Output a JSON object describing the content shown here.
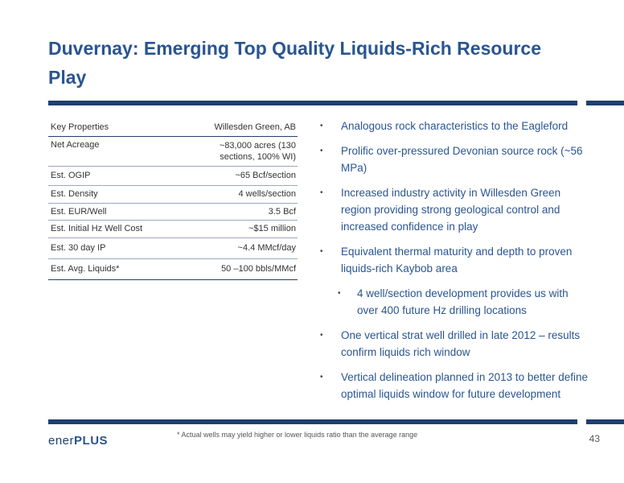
{
  "title": "Duvernay: Emerging Top Quality Liquids-Rich Resource Play",
  "table": {
    "header": {
      "label": "Key Properties",
      "value": "Willesden Green, AB"
    },
    "rows": [
      {
        "label": "Net Acreage",
        "value_line1": "~83,000 acres (130",
        "value_line2": "sections, 100% WI)"
      },
      {
        "label": "Est. OGIP",
        "value": "~65 Bcf/section"
      },
      {
        "label": "Est. Density",
        "value": "4 wells/section"
      },
      {
        "label": "Est. EUR/Well",
        "value": "3.5 Bcf"
      },
      {
        "label": "Est. Initial Hz Well Cost",
        "value": "~$15 million"
      },
      {
        "label": "Est. 30 day IP",
        "value": "~4.4 MMcf/day"
      },
      {
        "label": "Est. Avg. Liquids*",
        "value": "50 –100 bbls/MMcf"
      }
    ]
  },
  "bullets": [
    {
      "line1": "Analogous rock characteristics to the Eagleford"
    },
    {
      "line1": "Prolific over-pressured Devonian source rock (~56",
      "line2": "MPa)"
    },
    {
      "line1": "Increased industry activity in Willesden Green",
      "line2": "region providing strong geological control and",
      "line3": "increased confidence in play"
    },
    {
      "line1": "Equivalent thermal maturity and depth to proven",
      "line2": "liquids-rich Kaybob area"
    },
    {
      "line1": "4 well/section development provides us with",
      "line2": "over 400 future Hz drilling locations",
      "sub": true
    },
    {
      "line1": "One vertical strat well drilled in late 2012 – results",
      "line2": "confirm liquids rich window"
    },
    {
      "line1": "Vertical delineation planned in 2013 to better define",
      "line2": "optimal liquids window for future development"
    }
  ],
  "footer": {
    "logo_part1": "ener",
    "logo_part2": "PLUS",
    "footnote": "* Actual wells may yield higher or lower liquids ratio than the average range",
    "page_number": "43"
  },
  "colors": {
    "title": "#2a5590",
    "rule": "#1f3f6e",
    "bullet_text": "#2a5590"
  }
}
